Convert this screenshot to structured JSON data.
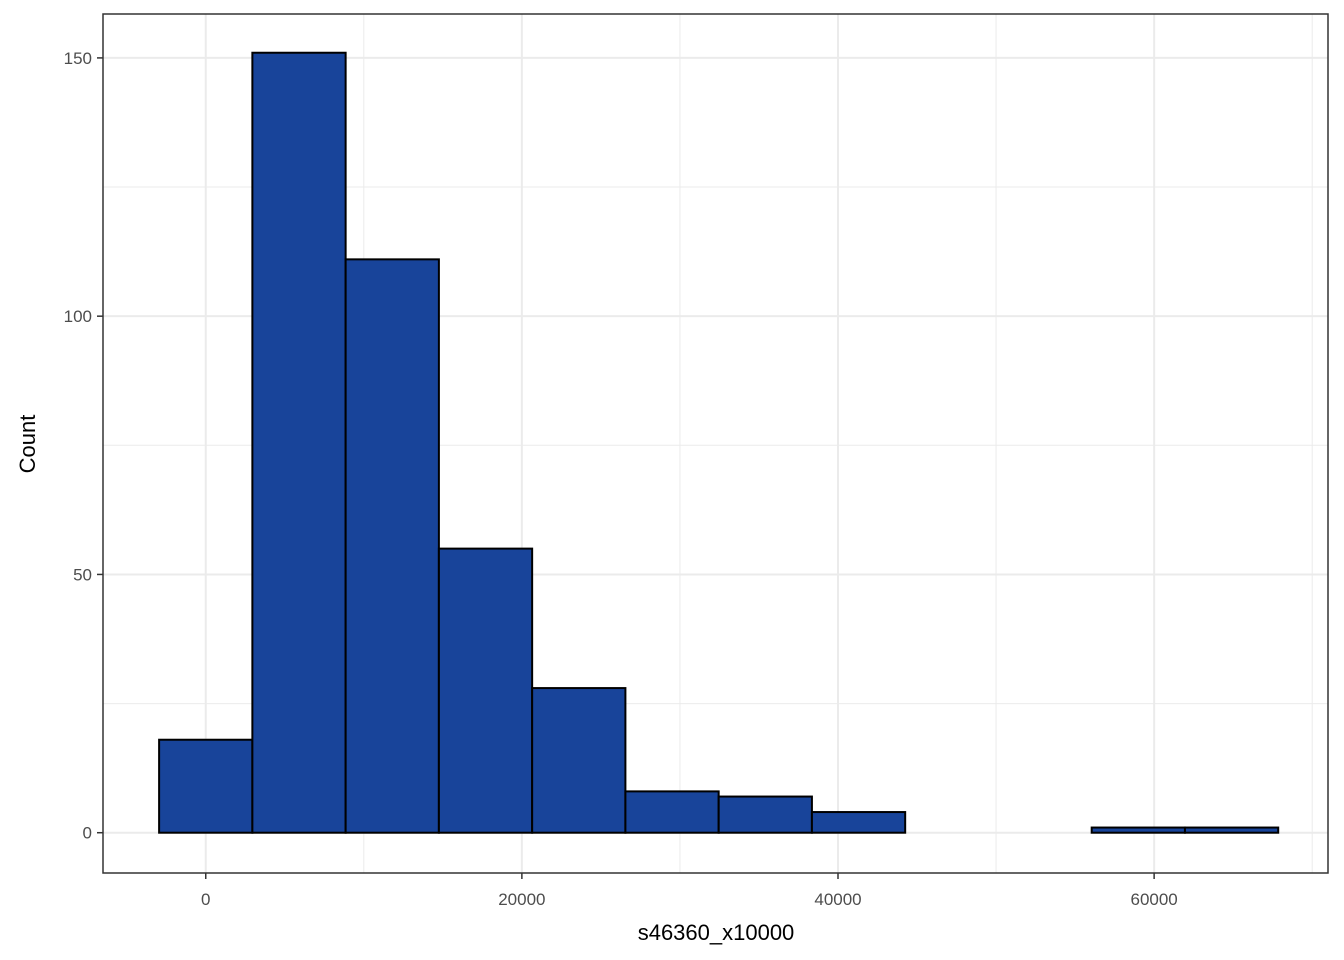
{
  "chart_data": {
    "type": "bar",
    "subtype": "histogram",
    "xlabel": "s46360_x10000",
    "ylabel": "Count",
    "xlim": [
      -6500,
      71000
    ],
    "ylim": [
      -7.8,
      158.5
    ],
    "x_ticks": [
      0,
      20000,
      40000,
      60000
    ],
    "x_tick_labels": [
      "0",
      "20000",
      "40000",
      "60000"
    ],
    "y_ticks": [
      0,
      50,
      100,
      150
    ],
    "y_tick_labels": [
      "0",
      "50",
      "100",
      "150"
    ],
    "grid": true,
    "legend": "none",
    "bins": [
      {
        "x0": -2950,
        "x1": 2950,
        "count": 18
      },
      {
        "x0": 2950,
        "x1": 8850,
        "count": 151
      },
      {
        "x0": 8850,
        "x1": 14750,
        "count": 111
      },
      {
        "x0": 14750,
        "x1": 20650,
        "count": 55
      },
      {
        "x0": 20650,
        "x1": 26550,
        "count": 28
      },
      {
        "x0": 26550,
        "x1": 32450,
        "count": 8
      },
      {
        "x0": 32450,
        "x1": 38350,
        "count": 7
      },
      {
        "x0": 38350,
        "x1": 44250,
        "count": 4
      },
      {
        "x0": 44250,
        "x1": 50150,
        "count": 0
      },
      {
        "x0": 50150,
        "x1": 56050,
        "count": 0
      },
      {
        "x0": 56050,
        "x1": 61950,
        "count": 1
      },
      {
        "x0": 61950,
        "x1": 67850,
        "count": 1
      }
    ],
    "colors": {
      "bar_fill": "#18449a",
      "bar_stroke": "#000000",
      "grid": "#ebebeb",
      "panel_border": "#333333"
    }
  }
}
